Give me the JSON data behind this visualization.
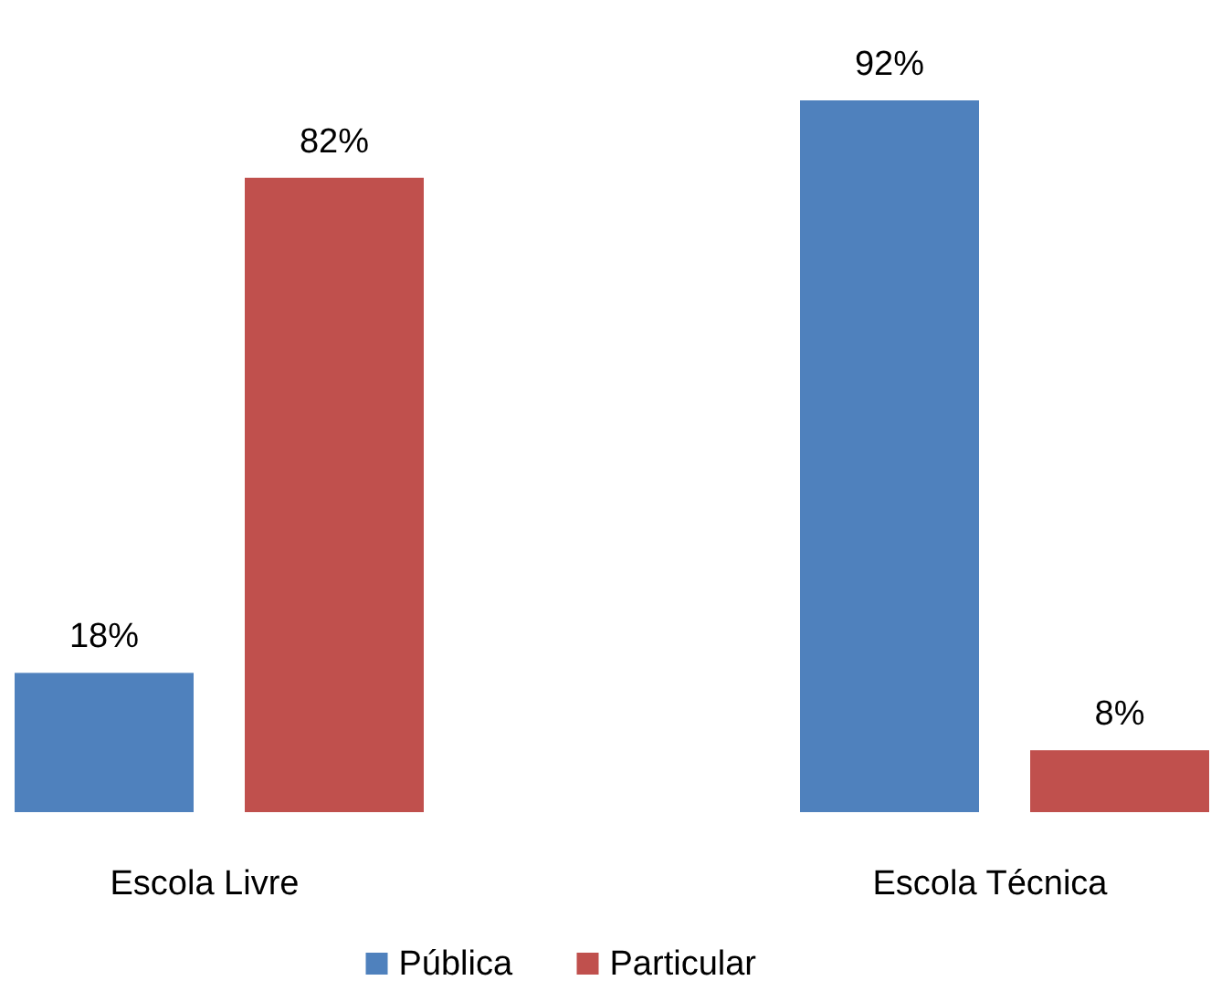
{
  "chart_data": {
    "type": "bar",
    "categories": [
      "Escola Livre",
      "Escola Técnica"
    ],
    "legend": "bottom",
    "series": [
      {
        "name": "Pública",
        "color": "#4f81bd",
        "values": [
          18,
          92
        ],
        "value_labels": [
          "18%",
          "92%"
        ]
      },
      {
        "name": "Particular",
        "color": "#c0504d",
        "values": [
          82,
          8
        ],
        "value_labels": [
          "82%",
          "8%"
        ]
      }
    ]
  }
}
